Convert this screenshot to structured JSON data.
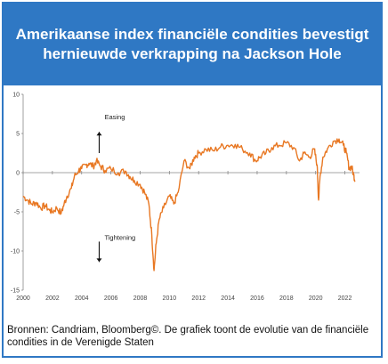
{
  "header": {
    "title": "Amerikaanse index financiële condities bevestigt hernieuwde verkrapping na Jackson Hole"
  },
  "caption": "Bronnen: Candriam, Bloomberg©. De grafiek toont de evolutie van de financiële condities in de Verenigde Staten",
  "colors": {
    "header_bg": "#2f78c4",
    "line": "#e87722",
    "border": "#2f78c4"
  },
  "chart_data": {
    "type": "line",
    "title": "",
    "xlabel": "",
    "ylabel": "",
    "xlim": [
      2000,
      2023
    ],
    "ylim": [
      -15,
      10
    ],
    "x_ticks": [
      "2000",
      "2002",
      "2004",
      "2006",
      "2008",
      "2010",
      "2012",
      "2014",
      "2016",
      "2018",
      "2020",
      "2022"
    ],
    "y_ticks": [
      "10",
      "5",
      "0",
      "-5",
      "-10",
      "-15"
    ],
    "grid": false,
    "annotations": [
      {
        "text": "Easing",
        "arrow": "up"
      },
      {
        "text": "Tightening",
        "arrow": "down"
      }
    ],
    "series": [
      {
        "x": [
          2000.0,
          2000.3,
          2000.6,
          2000.9,
          2001.2,
          2001.5,
          2001.8,
          2002.0,
          2002.3,
          2002.6,
          2002.8,
          2003.0,
          2003.3,
          2003.5,
          2003.8,
          2004.0,
          2004.3,
          2004.5,
          2004.8,
          2005.0,
          2005.3,
          2005.6,
          2006.0,
          2006.5,
          2007.0,
          2007.3,
          2007.6,
          2008.0,
          2008.3,
          2008.6,
          2008.8,
          2008.95,
          2009.1,
          2009.3,
          2009.6,
          2010.0,
          2010.3,
          2010.6,
          2011.0,
          2011.4,
          2011.7,
          2012.0,
          2012.5,
          2013.0,
          2013.5,
          2014.0,
          2014.5,
          2015.0,
          2015.5,
          2015.9,
          2016.2,
          2016.6,
          2017.0,
          2017.5,
          2018.0,
          2018.5,
          2018.9,
          2019.2,
          2019.6,
          2019.9,
          2020.1,
          2020.2,
          2020.3,
          2020.5,
          2020.8,
          2021.2,
          2021.6,
          2021.9,
          2022.1,
          2022.3,
          2022.45,
          2022.6,
          2022.7
        ],
        "y": [
          -3.0,
          -3.5,
          -4.0,
          -3.8,
          -4.5,
          -4.2,
          -4.8,
          -5.0,
          -4.5,
          -5.2,
          -4.0,
          -3.0,
          -2.0,
          -0.5,
          0.3,
          0.5,
          1.0,
          1.2,
          0.8,
          1.5,
          0.8,
          0.3,
          0.5,
          0.0,
          0.2,
          -0.5,
          -1.0,
          -1.5,
          -2.5,
          -4.0,
          -8.0,
          -12.5,
          -9.0,
          -6.0,
          -4.5,
          -3.0,
          -4.0,
          -2.5,
          1.5,
          0.5,
          2.0,
          2.5,
          3.0,
          2.8,
          3.3,
          3.5,
          3.6,
          3.0,
          2.5,
          1.5,
          2.0,
          2.5,
          3.2,
          3.5,
          3.8,
          3.2,
          1.5,
          2.5,
          2.0,
          3.0,
          1.0,
          -3.5,
          -0.5,
          2.0,
          3.0,
          4.0,
          4.3,
          3.5,
          2.5,
          0.5,
          0.8,
          -0.3,
          -1.0
        ]
      }
    ]
  }
}
